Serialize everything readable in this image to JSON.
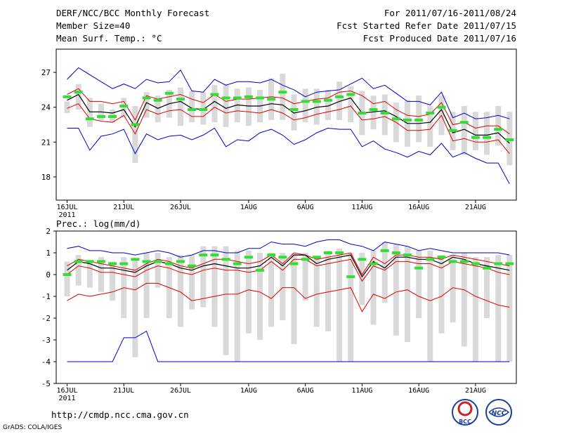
{
  "header": {
    "title": "DERF/NCC/BCC Monthly Forecast",
    "member_size": "Member Size=40",
    "variable": "Mean Surf. Temp.: °C",
    "period": "For 2011/07/16-2011/08/24",
    "started": "Fcst Started Refer Date 2011/07/15",
    "produced": "Fcst Produced Date 2011/07/16"
  },
  "footer": {
    "url": "http://cmdp.ncc.cma.gov.cn",
    "grads": "GrADS: COLA/IGES",
    "logo1_text": "BCC",
    "logo2_text": "NCC"
  },
  "x_axis": {
    "ticks": [
      {
        "day": 0,
        "label": "16JUL",
        "sub": "2011"
      },
      {
        "day": 5,
        "label": "21JUL"
      },
      {
        "day": 10,
        "label": "26JUL"
      },
      {
        "day": 16,
        "label": "1AUG"
      },
      {
        "day": 21,
        "label": "6AUG"
      },
      {
        "day": 26,
        "label": "11AUG"
      },
      {
        "day": 31,
        "label": "16AUG"
      },
      {
        "day": 36,
        "label": "21AUG"
      }
    ]
  },
  "colors": {
    "bar": "#d9d9d9",
    "mean": "#000000",
    "std": "#dd0000",
    "extreme": "#0000cc",
    "obs": "#33dd33"
  },
  "chart_data": [
    {
      "type": "line",
      "title": "Mean Surf. Temp.: °C",
      "ylabel": "°C",
      "ylim": [
        16,
        29
      ],
      "yticks": [
        18,
        21,
        24,
        27
      ],
      "series": [
        {
          "name": "max",
          "values": [
            26.4,
            27.4,
            26.8,
            26.2,
            25.6,
            26.0,
            25.6,
            26.4,
            26.1,
            26.2,
            27.2,
            25.4,
            25.3,
            26.4,
            25.9,
            26.2,
            26.2,
            26.1,
            26.4,
            25.9,
            25.5,
            24.9,
            25.3,
            25.4,
            25.5,
            26.0,
            26.5,
            25.6,
            25.9,
            25.2,
            24.5,
            24.5,
            24.2,
            25.3,
            23.1,
            23.5,
            23.0,
            23.1,
            23.3,
            23.0
          ]
        },
        {
          "name": "upper",
          "values": [
            25.1,
            25.6,
            24.5,
            24.5,
            24.3,
            24.5,
            22.9,
            25.0,
            24.7,
            24.9,
            25.1,
            24.7,
            24.4,
            25.1,
            24.5,
            24.7,
            24.7,
            24.8,
            24.9,
            24.8,
            24.3,
            24.5,
            24.7,
            24.8,
            25.3,
            25.4,
            25.0,
            24.3,
            24.5,
            23.8,
            23.3,
            23.2,
            23.4,
            24.4,
            22.5,
            22.7,
            22.2,
            22.4,
            22.4,
            21.7
          ]
        },
        {
          "name": "mean",
          "values": [
            24.6,
            25.1,
            23.6,
            23.6,
            23.5,
            23.8,
            22.3,
            24.4,
            23.9,
            24.3,
            24.5,
            23.9,
            23.8,
            24.5,
            23.9,
            24.2,
            24.1,
            24.1,
            24.3,
            24.2,
            23.5,
            23.7,
            24.0,
            24.1,
            24.5,
            24.8,
            23.5,
            23.6,
            23.7,
            23.2,
            22.6,
            22.6,
            22.7,
            23.8,
            21.8,
            22.1,
            21.6,
            21.6,
            21.8,
            20.9
          ]
        },
        {
          "name": "lower",
          "values": [
            23.9,
            24.3,
            23.0,
            22.8,
            22.7,
            23.3,
            21.7,
            23.8,
            23.4,
            23.7,
            23.8,
            23.2,
            23.2,
            24.0,
            23.5,
            23.7,
            23.6,
            23.5,
            23.8,
            23.5,
            22.9,
            23.1,
            23.4,
            23.6,
            23.8,
            24.1,
            22.9,
            23.0,
            23.2,
            22.7,
            22.0,
            22.0,
            22.1,
            23.3,
            21.1,
            21.3,
            21.0,
            21.0,
            21.2,
            20.0
          ]
        },
        {
          "name": "min",
          "values": [
            22.2,
            22.2,
            20.3,
            21.5,
            21.7,
            22.1,
            20.0,
            21.7,
            21.2,
            21.5,
            21.6,
            21.2,
            21.6,
            22.2,
            20.6,
            21.2,
            21.1,
            21.8,
            22.1,
            21.6,
            20.8,
            21.2,
            21.8,
            22.2,
            22.1,
            22.1,
            20.6,
            21.1,
            20.4,
            20.1,
            19.7,
            20.2,
            19.9,
            20.9,
            19.7,
            20.1,
            19.6,
            19.2,
            19.2,
            17.4
          ]
        }
      ],
      "boxes": {
        "low": [
          23.5,
          23.8,
          22.3,
          22.9,
          22.7,
          23.1,
          19.2,
          23.1,
          22.7,
          23.1,
          22.4,
          22.7,
          22.5,
          22.7,
          22.3,
          22.7,
          22.4,
          22.7,
          22.9,
          22.9,
          22.0,
          22.7,
          22.5,
          22.9,
          22.9,
          22.7,
          21.6,
          22.1,
          21.6,
          21.0,
          20.6,
          21.0,
          20.6,
          21.6,
          20.3,
          19.9,
          20.3,
          19.9,
          20.7,
          19.0
        ],
        "high": [
          24.5,
          26.0,
          24.8,
          24.3,
          23.8,
          24.8,
          24.1,
          25.3,
          25.0,
          25.5,
          25.7,
          25.4,
          25.3,
          25.9,
          26.0,
          25.6,
          25.7,
          25.5,
          26.5,
          26.9,
          25.1,
          25.6,
          25.6,
          25.5,
          26.2,
          25.8,
          25.4,
          25.0,
          25.1,
          24.4,
          24.6,
          25.0,
          24.1,
          25.0,
          23.6,
          24.1,
          23.6,
          23.6,
          24.1,
          23.6
        ]
      },
      "observed": [
        24.9,
        25.3,
        23.0,
        23.2,
        23.2,
        24.1,
        22.5,
        24.8,
        24.6,
        25.2,
        24.7,
        23.8,
        23.8,
        25.1,
        24.8,
        24.8,
        24.9,
        24.8,
        24.7,
        25.3,
        23.8,
        24.5,
        24.5,
        24.6,
        24.9,
        25.1,
        23.5,
        23.8,
        23.5,
        23.0,
        22.9,
        22.9,
        23.5,
        24.0,
        22.0,
        22.7,
        21.4,
        21.4,
        22.1,
        21.2
      ]
    },
    {
      "type": "line",
      "title": "Prec.: log(mm/d)",
      "ylabel": "log(mm/d)",
      "ylim": [
        -5,
        2
      ],
      "yticks": [
        -5,
        -4,
        -3,
        -2,
        -1,
        0,
        1,
        2
      ],
      "series": [
        {
          "name": "max",
          "values": [
            1.2,
            1.3,
            1.1,
            1.1,
            1.0,
            1.0,
            0.9,
            1.0,
            1.1,
            1.0,
            0.8,
            0.9,
            1.1,
            1.1,
            1.0,
            1.0,
            1.2,
            1.2,
            1.5,
            1.4,
            1.4,
            1.3,
            1.5,
            1.6,
            1.6,
            1.4,
            1.3,
            1.1,
            1.5,
            1.4,
            1.3,
            1.1,
            1.2,
            1.1,
            1.0,
            1.0,
            1.0,
            1.0,
            1.0,
            0.9
          ]
        },
        {
          "name": "upper",
          "values": [
            0.4,
            0.7,
            0.6,
            0.5,
            0.4,
            0.3,
            0.2,
            0.5,
            0.7,
            0.6,
            0.4,
            0.3,
            0.5,
            0.7,
            0.7,
            0.6,
            0.5,
            0.6,
            0.9,
            0.5,
            1.0,
            0.9,
            0.7,
            0.8,
            0.9,
            1.0,
            0.0,
            0.8,
            0.5,
            0.9,
            0.9,
            0.8,
            0.8,
            0.7,
            0.9,
            0.8,
            0.7,
            0.6,
            0.5,
            0.4
          ]
        },
        {
          "name": "mean",
          "values": [
            0.2,
            0.6,
            0.5,
            0.3,
            0.3,
            0.2,
            0.1,
            0.4,
            0.6,
            0.5,
            0.3,
            0.2,
            0.4,
            0.5,
            0.4,
            0.3,
            0.3,
            0.4,
            0.8,
            0.4,
            0.9,
            0.9,
            0.5,
            0.7,
            0.8,
            0.9,
            -0.1,
            0.6,
            0.3,
            0.8,
            0.8,
            0.7,
            0.7,
            0.5,
            0.8,
            0.7,
            0.5,
            0.4,
            0.3,
            0.2
          ]
        },
        {
          "name": "lower",
          "values": [
            0.0,
            0.4,
            0.3,
            0.1,
            0.1,
            0.0,
            -0.1,
            0.2,
            0.4,
            0.3,
            0.1,
            0.0,
            0.2,
            0.3,
            0.2,
            0.2,
            0.1,
            0.2,
            0.6,
            0.2,
            0.7,
            0.7,
            0.4,
            0.5,
            0.6,
            0.7,
            -0.3,
            0.4,
            0.2,
            0.6,
            0.6,
            0.5,
            0.5,
            0.3,
            0.6,
            0.5,
            0.4,
            0.3,
            0.1,
            0.0
          ]
        },
        {
          "name": "min_std",
          "values": [
            -1.2,
            -0.9,
            -1.0,
            -0.9,
            -0.8,
            -0.6,
            -0.7,
            -0.4,
            -0.4,
            -0.6,
            -0.8,
            -1.2,
            -1.1,
            -1.0,
            -0.9,
            -0.9,
            -0.7,
            -0.8,
            -1.1,
            -0.6,
            -0.6,
            -1.1,
            -0.9,
            -0.8,
            -0.7,
            -0.6,
            -1.7,
            -0.9,
            -1.1,
            -0.8,
            -0.7,
            -1.0,
            -1.2,
            -1.0,
            -0.6,
            -0.7,
            -1.0,
            -1.2,
            -1.4,
            -1.5
          ]
        },
        {
          "name": "min",
          "values": [
            -4,
            -4,
            -4,
            -4,
            -4,
            -2.9,
            -2.9,
            -2.6,
            -4,
            -4,
            -4,
            -4,
            -4,
            -4,
            -4,
            -4,
            -4,
            -4,
            -4,
            -4,
            -4,
            -4,
            -4,
            -4,
            -4,
            -4,
            -4,
            -4,
            -4,
            -4,
            -4,
            -4,
            -4,
            -4,
            -4,
            -4,
            -4,
            -4,
            -4,
            -4
          ]
        }
      ],
      "boxes": {
        "low": [
          -1.0,
          -0.5,
          -0.6,
          -0.8,
          -1.2,
          -2.0,
          -3.8,
          -2.0,
          -0.6,
          -2.0,
          -2.4,
          -1.6,
          -1.5,
          -2.4,
          -3.7,
          -4.0,
          -2.7,
          -3.0,
          -2.4,
          -2.1,
          -3.2,
          -1.2,
          -2.4,
          -2.6,
          -4.0,
          -4.0,
          -1.4,
          -2.3,
          -1.3,
          -2.8,
          -3.1,
          -2.0,
          -4.0,
          -2.7,
          -2.2,
          -3.3,
          -4.0,
          -2.0,
          -4.0,
          -4.0
        ],
        "high": [
          0.6,
          0.9,
          0.6,
          0.8,
          0.6,
          0.8,
          0.7,
          1.0,
          1.0,
          0.8,
          0.9,
          0.9,
          1.3,
          1.3,
          1.3,
          1.1,
          1.1,
          1.0,
          1.0,
          1.0,
          1.0,
          1.0,
          0.8,
          1.1,
          1.2,
          1.0,
          1.0,
          1.1,
          1.5,
          1.4,
          1.3,
          1.1,
          1.1,
          0.9,
          0.9,
          1.0,
          0.8,
          0.8,
          0.9,
          0.9
        ]
      },
      "observed": [
        0.0,
        0.6,
        0.6,
        0.6,
        0.5,
        0.5,
        0.7,
        0.6,
        0.6,
        0.5,
        0.6,
        0.4,
        0.9,
        0.9,
        0.7,
        0.5,
        0.8,
        0.2,
        0.9,
        0.8,
        0.5,
        0.7,
        0.8,
        1.0,
        1.0,
        -0.1,
        0.7,
        0.5,
        1.1,
        1.0,
        0.9,
        0.3,
        0.7,
        0.8,
        0.6,
        0.6,
        0.5,
        0.3,
        0.5,
        0.5
      ]
    }
  ]
}
